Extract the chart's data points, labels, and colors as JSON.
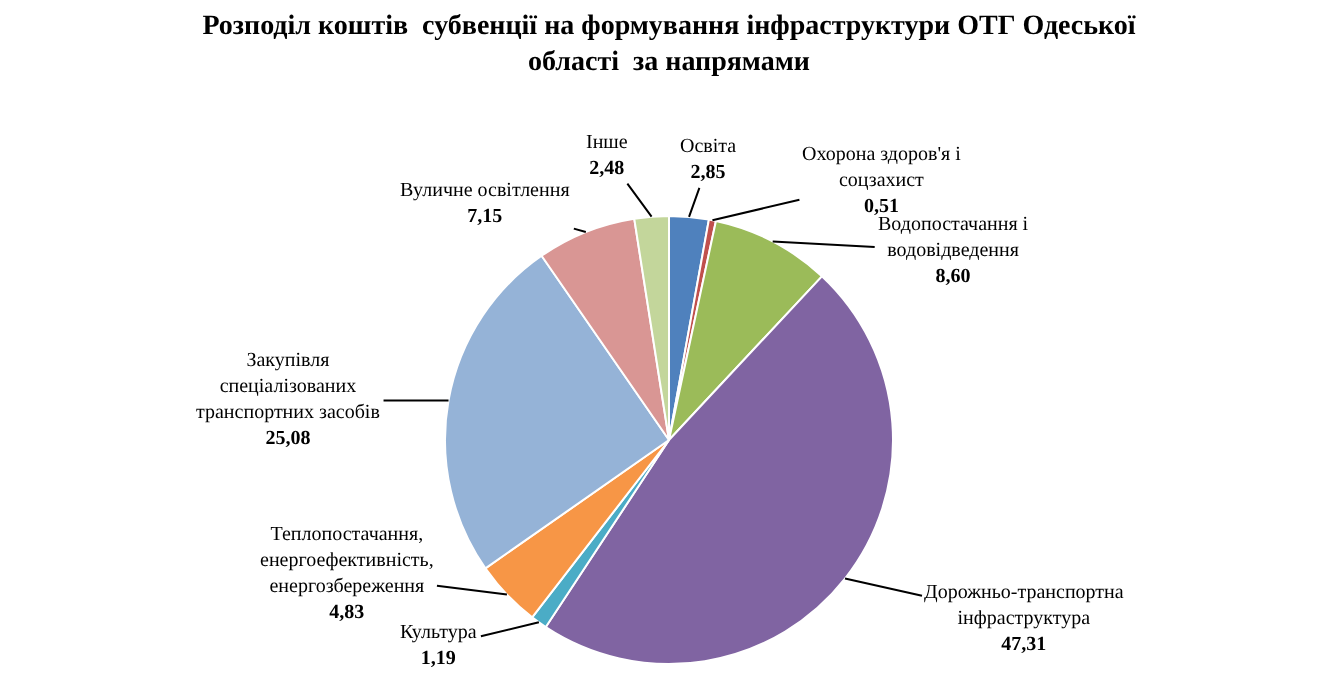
{
  "chart_data": {
    "type": "pie",
    "title": "Розподіл коштів  субвенції на формування інфраструктури ОТГ Одеської області  за напрямами",
    "categories": [
      "Освіта",
      "Охорона здоров'я і соцзахист",
      "Водопостачання і водовідведення",
      "Дорожньо-транспортна інфраструктура",
      "Культура",
      "Теплопостачання, енергоефективність, енергозбереження",
      "Закупівля спеціалізованих транспортних засобів",
      "Вуличне освітлення",
      "Інше"
    ],
    "values": [
      2.85,
      0.51,
      8.6,
      47.31,
      1.19,
      4.83,
      25.08,
      7.15,
      2.48
    ],
    "value_labels": [
      "2,85",
      "0,51",
      "8,60",
      "47,31",
      "1,19",
      "4,83",
      "25,08",
      "7,15",
      "2,48"
    ],
    "colors": [
      "#4f81bd",
      "#c0504d",
      "#9bbb59",
      "#8064a2",
      "#4bacc6",
      "#f79646",
      "#95b3d7",
      "#d99694",
      "#c3d69b"
    ]
  }
}
